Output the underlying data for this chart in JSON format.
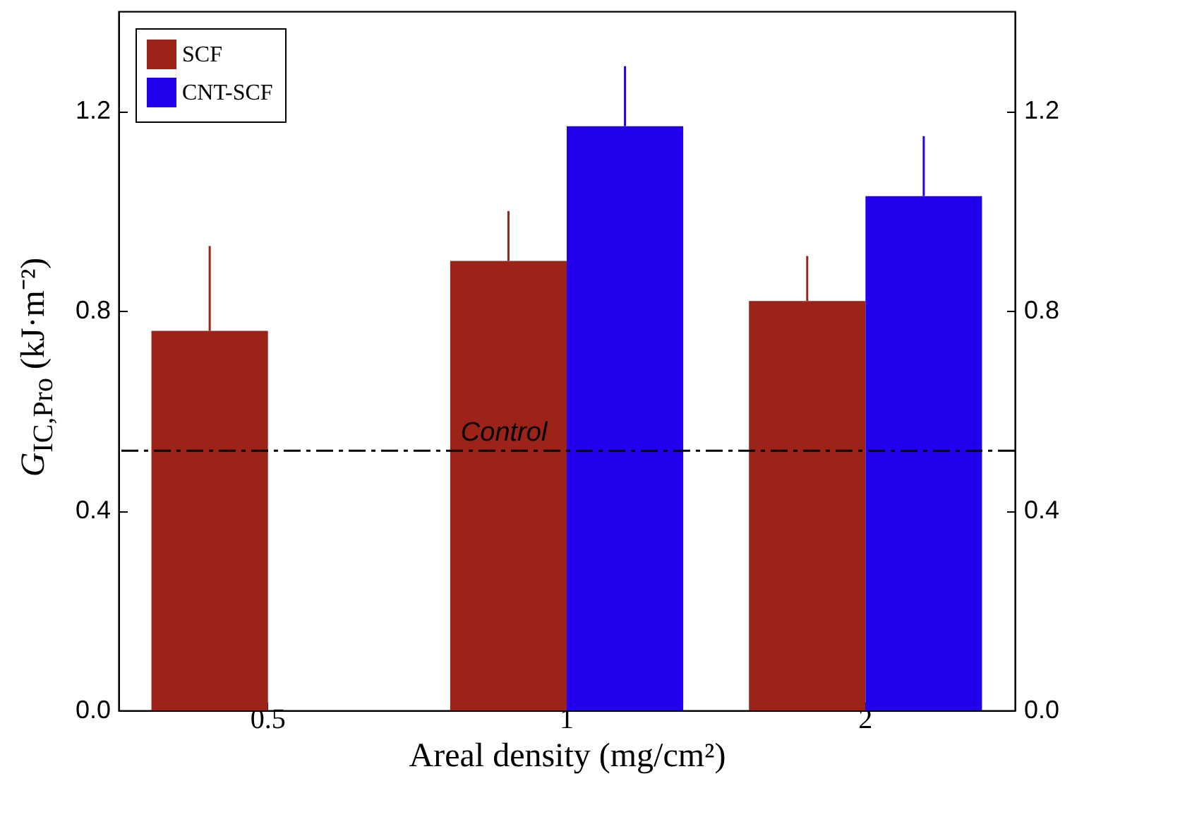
{
  "chart_data": {
    "type": "bar",
    "xlabel": "Areal density (mg/cm²)",
    "ylabel": "G$_{IC,Pro}$ (kJ·m⁻²)",
    "categories": [
      "0.5",
      "1",
      "2"
    ],
    "series": [
      {
        "name": "SCF",
        "color": "#9b2318",
        "values": [
          0.76,
          0.9,
          0.82
        ],
        "errors": [
          [
            0.76,
            0.93
          ],
          [
            0.9,
            1.0
          ],
          [
            0.82,
            0.91
          ]
        ]
      },
      {
        "name": "CNT-SCF",
        "color": "#2200ee",
        "values": [
          null,
          1.17,
          1.03
        ],
        "errors": [
          null,
          [
            1.17,
            1.29
          ],
          [
            1.03,
            1.15
          ]
        ]
      }
    ],
    "ylim": [
      0,
      1.4
    ],
    "yticks": [
      {
        "value": 0,
        "label": "0.0"
      },
      0.4,
      0.8,
      1.2
    ],
    "y2lim": [
      0,
      1.4
    ],
    "y2ticks": [
      {
        "value": 0,
        "label": "0.0"
      },
      0.4,
      0.8,
      1.2
    ],
    "ref_lines": [
      {
        "axis": "y",
        "value": 0.52,
        "label": "Control",
        "color": "#000000",
        "line_style": "dashed"
      }
    ],
    "legend": "top left",
    "grid": false
  }
}
